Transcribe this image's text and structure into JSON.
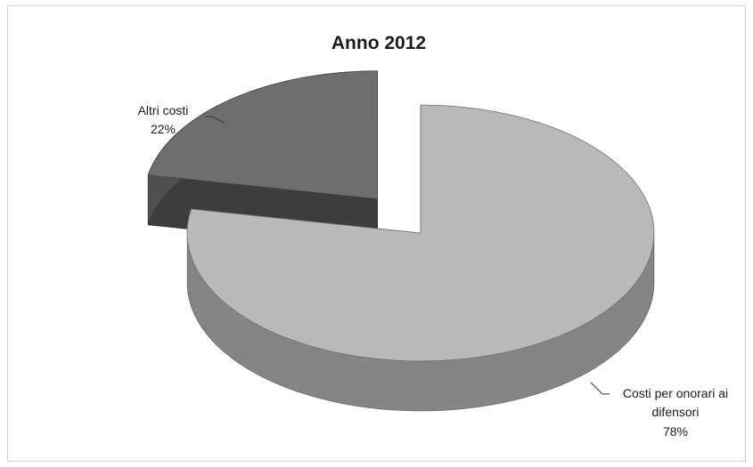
{
  "chart_data": {
    "type": "pie",
    "title": "Anno 2012",
    "slices": [
      {
        "label_lines": [
          "Altri costi"
        ],
        "percent_label": "22%",
        "value": 22,
        "color": "#6e6e6e",
        "exploded": true
      },
      {
        "label_lines": [
          "Costi per onorari ai",
          "difensori"
        ],
        "percent_label": "78%",
        "value": 78,
        "color": "#b9b9b9",
        "exploded": false
      }
    ],
    "legend": "none",
    "style": "3d-exploded"
  }
}
